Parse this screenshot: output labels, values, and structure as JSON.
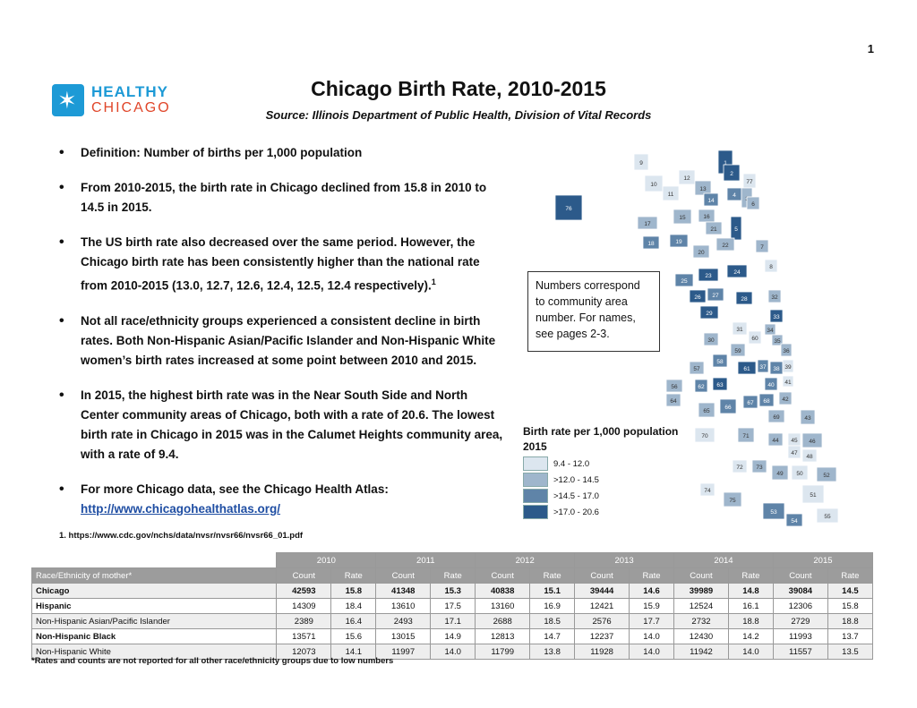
{
  "page_number": "1",
  "logo": {
    "line1": "HEALTHY",
    "line2": "CHICAGO"
  },
  "title": "Chicago Birth Rate, 2010-2015",
  "source": "Source:   Illinois Department of Public Health, Division of Vital Records",
  "bullets": [
    {
      "text": "Definition: Number of births per 1,000 population"
    },
    {
      "text": "From 2010-2015, the birth rate in Chicago declined from 15.8 in 2010 to 14.5 in 2015."
    },
    {
      "text": "The US birth rate also decreased over the same period.  However, the Chicago birth rate has been consistently higher than the national rate from 2010-2015 (13.0, 12.7, 12.6, 12.4, 12.5, 12.4 respectively).",
      "sup": "1"
    },
    {
      "text": "Not all race/ethnicity groups experienced a consistent decline in birth rates. Both Non-Hispanic Asian/Pacific Islander and Non-Hispanic White women’s birth rates increased at some point between 2010 and 2015."
    },
    {
      "text": "In 2015, the highest birth rate was in the Near South Side and North Center community areas of Chicago, both with a rate of 20.6.  The lowest birth rate in Chicago in 2015 was in the Calumet Heights community area, with a rate of 9.4."
    },
    {
      "text": "For more Chicago data, see the Chicago Health Atlas:",
      "link": "http://www.chicagohealthatlas.org/"
    }
  ],
  "footnote": "1. https://www.cdc.gov/nchs/data/nvsr/nvsr66/nvsr66_01.pdf",
  "callout": "Numbers correspond to community area number. For names, see pages 2-3.",
  "legend": {
    "title": "Birth rate per 1,000 population",
    "subtitle": "2015",
    "items": [
      {
        "label": "9.4 - 12.0",
        "color": "#dce6ef"
      },
      {
        "label": ">12.0 - 14.5",
        "color": "#9fb6cc"
      },
      {
        "label": ">14.5 - 17.0",
        "color": "#5f84a8"
      },
      {
        "label": ">17.0 - 20.6",
        "color": "#2c5a8a"
      }
    ]
  },
  "map_areas": [
    {
      "n": "76",
      "cls": 4
    },
    {
      "n": "9",
      "cls": 1
    },
    {
      "n": "10",
      "cls": 1
    },
    {
      "n": "11",
      "cls": 1
    },
    {
      "n": "12",
      "cls": 1
    },
    {
      "n": "13",
      "cls": 2
    },
    {
      "n": "1",
      "cls": 4
    },
    {
      "n": "2",
      "cls": 4
    },
    {
      "n": "77",
      "cls": 1
    },
    {
      "n": "4",
      "cls": 3
    },
    {
      "n": "14",
      "cls": 3
    },
    {
      "n": "3",
      "cls": 2
    },
    {
      "n": "15",
      "cls": 2
    },
    {
      "n": "16",
      "cls": 2
    },
    {
      "n": "5",
      "cls": 4
    },
    {
      "n": "6",
      "cls": 2
    },
    {
      "n": "17",
      "cls": 2
    },
    {
      "n": "21",
      "cls": 2
    },
    {
      "n": "18",
      "cls": 3
    },
    {
      "n": "19",
      "cls": 3
    },
    {
      "n": "20",
      "cls": 2
    },
    {
      "n": "22",
      "cls": 2
    },
    {
      "n": "7",
      "cls": 2
    },
    {
      "n": "25",
      "cls": 3
    },
    {
      "n": "23",
      "cls": 4
    },
    {
      "n": "24",
      "cls": 4
    },
    {
      "n": "8",
      "cls": 1
    },
    {
      "n": "26",
      "cls": 4
    },
    {
      "n": "27",
      "cls": 3
    },
    {
      "n": "28",
      "cls": 4
    },
    {
      "n": "32",
      "cls": 2
    },
    {
      "n": "29",
      "cls": 4
    },
    {
      "n": "33",
      "cls": 4
    },
    {
      "n": "31",
      "cls": 1
    },
    {
      "n": "30",
      "cls": 2
    },
    {
      "n": "60",
      "cls": 1
    },
    {
      "n": "34",
      "cls": 2
    },
    {
      "n": "35",
      "cls": 2
    },
    {
      "n": "59",
      "cls": 2
    },
    {
      "n": "36",
      "cls": 2
    },
    {
      "n": "58",
      "cls": 3
    },
    {
      "n": "57",
      "cls": 2
    },
    {
      "n": "61",
      "cls": 4
    },
    {
      "n": "37",
      "cls": 3
    },
    {
      "n": "38",
      "cls": 3
    },
    {
      "n": "39",
      "cls": 1
    },
    {
      "n": "56",
      "cls": 2
    },
    {
      "n": "62",
      "cls": 3
    },
    {
      "n": "63",
      "cls": 4
    },
    {
      "n": "40",
      "cls": 3
    },
    {
      "n": "41",
      "cls": 1
    },
    {
      "n": "64",
      "cls": 2
    },
    {
      "n": "65",
      "cls": 2
    },
    {
      "n": "66",
      "cls": 3
    },
    {
      "n": "67",
      "cls": 3
    },
    {
      "n": "68",
      "cls": 3
    },
    {
      "n": "42",
      "cls": 2
    },
    {
      "n": "69",
      "cls": 2
    },
    {
      "n": "43",
      "cls": 2
    },
    {
      "n": "70",
      "cls": 1
    },
    {
      "n": "71",
      "cls": 2
    },
    {
      "n": "44",
      "cls": 2
    },
    {
      "n": "45",
      "cls": 1
    },
    {
      "n": "46",
      "cls": 2
    },
    {
      "n": "47",
      "cls": 1
    },
    {
      "n": "48",
      "cls": 1
    },
    {
      "n": "72",
      "cls": 1
    },
    {
      "n": "73",
      "cls": 2
    },
    {
      "n": "49",
      "cls": 2
    },
    {
      "n": "50",
      "cls": 1
    },
    {
      "n": "52",
      "cls": 2
    },
    {
      "n": "74",
      "cls": 1
    },
    {
      "n": "75",
      "cls": 2
    },
    {
      "n": "51",
      "cls": 1
    },
    {
      "n": "53",
      "cls": 3
    },
    {
      "n": "54",
      "cls": 3
    },
    {
      "n": "55",
      "cls": 1
    }
  ],
  "table": {
    "years": [
      "2010",
      "2011",
      "2012",
      "2013",
      "2014",
      "2015"
    ],
    "row_header": "Race/Ethnicity of mother*",
    "col_count": "Count",
    "col_rate": "Rate",
    "rows": [
      {
        "label": "Chicago",
        "bold": true,
        "shade": true,
        "cells": [
          [
            "42593",
            "15.8"
          ],
          [
            "41348",
            "15.3"
          ],
          [
            "40838",
            "15.1"
          ],
          [
            "39444",
            "14.6"
          ],
          [
            "39989",
            "14.8"
          ],
          [
            "39084",
            "14.5"
          ]
        ]
      },
      {
        "label": "Hispanic",
        "bold": false,
        "label_bold": true,
        "cells": [
          [
            "14309",
            "18.4"
          ],
          [
            "13610",
            "17.5"
          ],
          [
            "13160",
            "16.9"
          ],
          [
            "12421",
            "15.9"
          ],
          [
            "12524",
            "16.1"
          ],
          [
            "12306",
            "15.8"
          ]
        ]
      },
      {
        "label": "Non-Hispanic Asian/Pacific Islander",
        "shade": true,
        "cells": [
          [
            "2389",
            "16.4"
          ],
          [
            "2493",
            "17.1"
          ],
          [
            "2688",
            "18.5"
          ],
          [
            "2576",
            "17.7"
          ],
          [
            "2732",
            "18.8"
          ],
          [
            "2729",
            "18.8"
          ]
        ]
      },
      {
        "label": "Non-Hispanic Black",
        "label_bold": true,
        "cells": [
          [
            "13571",
            "15.6"
          ],
          [
            "13015",
            "14.9"
          ],
          [
            "12813",
            "14.7"
          ],
          [
            "12237",
            "14.0"
          ],
          [
            "12430",
            "14.2"
          ],
          [
            "11993",
            "13.7"
          ]
        ]
      },
      {
        "label": "Non-Hispanic White",
        "shade": true,
        "cells": [
          [
            "12073",
            "14.1"
          ],
          [
            "11997",
            "14.0"
          ],
          [
            "11799",
            "13.8"
          ],
          [
            "11928",
            "14.0"
          ],
          [
            "11942",
            "14.0"
          ],
          [
            "11557",
            "13.5"
          ]
        ]
      }
    ],
    "note": "*Rates and counts are not reported for all other race/ethnicity groups due to low numbers"
  }
}
